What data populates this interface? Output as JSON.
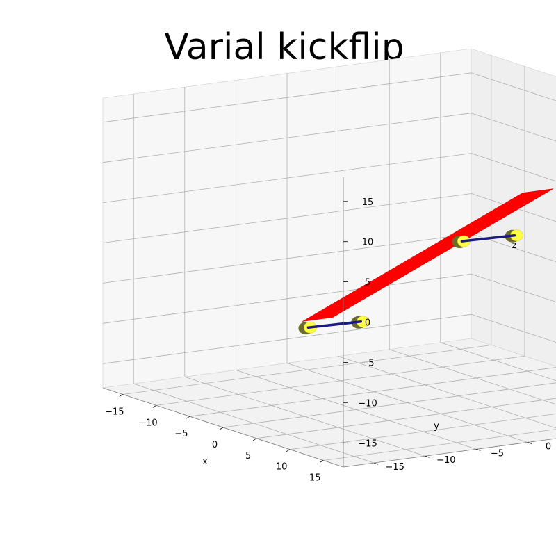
{
  "chart_data": {
    "type": "3d-surface",
    "title": "Varial kickflip",
    "xlabel": "x",
    "ylabel": "y",
    "zlabel": "z",
    "xlim": [
      -18,
      18
    ],
    "ylim": [
      -18,
      18
    ],
    "zlim": [
      -18,
      18
    ],
    "xticks": [
      -15,
      -10,
      -5,
      0,
      5,
      10,
      15
    ],
    "yticks": [
      -15,
      -10,
      -5,
      0,
      5,
      10,
      15
    ],
    "zticks": [
      -15,
      -10,
      -5,
      0,
      5,
      10,
      15
    ],
    "tick_labels": {
      "x": [
        "−15",
        "−10",
        "−5",
        "0",
        "5",
        "10",
        "15"
      ],
      "y": [
        "−15",
        "−10",
        "−5",
        "0",
        "5",
        "10",
        "15"
      ],
      "z": [
        "−15",
        "−10",
        "−5",
        "0",
        "5",
        "10",
        "15"
      ]
    },
    "grid": true,
    "colors": {
      "deck": "#ff0000",
      "axle": "#1a1a80",
      "wheel": "#ffff44",
      "wheel_shadow": "#6b6b2a",
      "pane": "#f2f2f2"
    },
    "objects": {
      "deck": {
        "corners": [
          [
            -16.5,
            3.5,
            -12.5
          ],
          [
            -16.5,
            0.5,
            -12.5
          ],
          [
            16.5,
            0.5,
            12.5
          ],
          [
            16.5,
            3.5,
            12.5
          ]
        ],
        "color": "#ff0000"
      },
      "axles": [
        {
          "from": [
            -13,
            -1.2,
            -12
          ],
          "to": [
            -10,
            2,
            -11
          ]
        },
        {
          "from": [
            10,
            -1.2,
            5
          ],
          "to": [
            13,
            2,
            6
          ]
        }
      ],
      "wheels": [
        {
          "center": [
            -13,
            -1.2,
            -12
          ]
        },
        {
          "center": [
            -10,
            2,
            -11
          ]
        },
        {
          "center": [
            10,
            -1.2,
            5
          ]
        },
        {
          "center": [
            13,
            2,
            6
          ]
        }
      ]
    }
  }
}
